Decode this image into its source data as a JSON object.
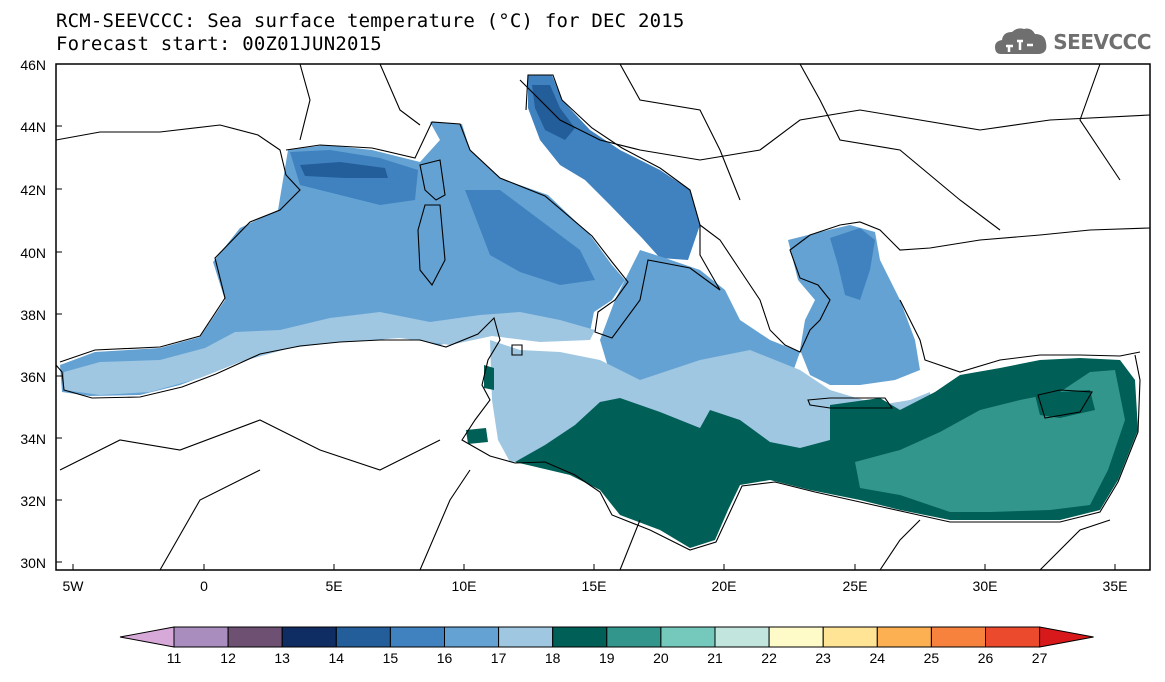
{
  "title_line1": "RCM-SEEVCCC: Sea surface temperature (°C) for DEC 2015",
  "title_line2": "Forecast start: 00Z01JUN2015",
  "logo_text": "SEEVCCC",
  "logo_icon": "cloud-icon",
  "map": {
    "lon_range": [
      -5.5,
      36.5
    ],
    "lat_range": [
      30,
      46
    ],
    "lat_ticks": [
      "46N",
      "44N",
      "42N",
      "40N",
      "38N",
      "36N",
      "34N",
      "32N",
      "30N"
    ],
    "lon_ticks": [
      "5W",
      "0",
      "5E",
      "10E",
      "15E",
      "20E",
      "25E",
      "30E",
      "35E"
    ],
    "variable": "Sea surface temperature",
    "unit": "°C"
  },
  "colorbar": {
    "labels": [
      "11",
      "12",
      "13",
      "14",
      "15",
      "16",
      "17",
      "18",
      "19",
      "20",
      "21",
      "22",
      "23",
      "24",
      "25",
      "26",
      "27"
    ],
    "colors": [
      "#d6a9d8",
      "#a98dbf",
      "#6e5073",
      "#0f2c63",
      "#235e9b",
      "#3f82bf",
      "#64a2d3",
      "#9fc7e2",
      "#005f56",
      "#32968c",
      "#75c9bc",
      "#c2e6de",
      "#fffbc8",
      "#fee494",
      "#fdb052",
      "#f7823d",
      "#ec4a2c",
      "#d7191c"
    ]
  }
}
